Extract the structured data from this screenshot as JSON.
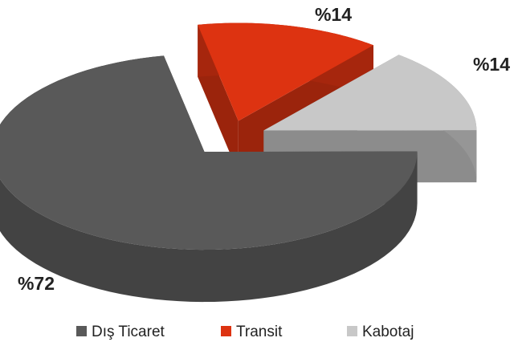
{
  "chart_data": {
    "type": "pie3d",
    "categories": [
      "Dış Ticaret",
      "Transit",
      "Kabotaj"
    ],
    "values": [
      72,
      14,
      14
    ],
    "value_labels": [
      "%72",
      "%14",
      "%14"
    ],
    "colors": [
      "#595959",
      "#dd3311",
      "#c8c8c8"
    ],
    "legend": "bottom"
  }
}
